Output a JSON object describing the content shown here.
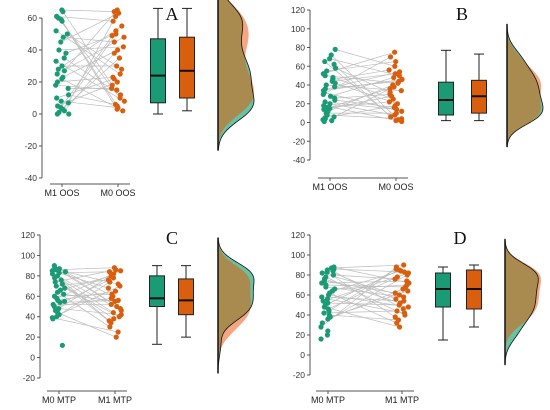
{
  "colors": {
    "green": "#1a9b75",
    "orange": "#d95f0e",
    "pair_line": "#bdbdbd",
    "overlap": "#a98a4f",
    "green_fill": "#66c2a5",
    "orange_fill": "#f4a582"
  },
  "chart_data": [
    {
      "type": "scatter",
      "panel_label": "A",
      "categories": [
        "M1 OOS",
        "M0 OOS"
      ],
      "ylim": [
        -40,
        65
      ],
      "yticks": [
        -40,
        -20,
        0,
        20,
        40,
        60
      ],
      "series": [
        {
          "values": [
            65,
            64,
            61,
            60,
            59,
            58,
            52,
            50,
            48,
            45,
            40,
            38,
            35,
            33,
            30,
            28,
            27,
            25,
            23,
            22,
            20,
            18,
            16,
            12,
            10,
            8,
            7,
            5,
            4,
            3,
            2,
            1,
            0,
            0
          ]
        },
        {
          "values": [
            65,
            64,
            63,
            61,
            58,
            55,
            52,
            50,
            49,
            48,
            45,
            42,
            40,
            38,
            35,
            30,
            28,
            25,
            23,
            22,
            20,
            18,
            16,
            15,
            12,
            10,
            8,
            6,
            5,
            4,
            3,
            2
          ]
        }
      ],
      "box": [
        {
          "min": 0,
          "q1": 7,
          "median": 24,
          "q3": 47,
          "max": 66
        },
        {
          "min": 2,
          "q1": 10,
          "median": 27,
          "q3": 48,
          "max": 66
        }
      ]
    },
    {
      "type": "scatter",
      "panel_label": "B",
      "categories": [
        "M1 OOS",
        "M0 OOS"
      ],
      "ylim": [
        -40,
        120
      ],
      "yticks": [
        -40,
        -20,
        0,
        20,
        40,
        60,
        80,
        100,
        120
      ],
      "series": [
        {
          "values": [
            78,
            72,
            68,
            65,
            62,
            58,
            55,
            52,
            50,
            48,
            46,
            44,
            42,
            40,
            38,
            36,
            34,
            32,
            30,
            28,
            26,
            24,
            22,
            20,
            18,
            16,
            15,
            14,
            12,
            10,
            8,
            6,
            5,
            4,
            3,
            2,
            1
          ]
        },
        {
          "values": [
            75,
            70,
            65,
            60,
            56,
            54,
            52,
            50,
            48,
            46,
            44,
            42,
            40,
            38,
            36,
            34,
            32,
            30,
            28,
            25,
            22,
            20,
            18,
            16,
            14,
            12,
            10,
            8,
            6,
            4,
            3,
            2,
            1
          ]
        }
      ],
      "box": [
        {
          "min": 2,
          "q1": 8,
          "median": 24,
          "q3": 43,
          "max": 77
        },
        {
          "min": 2,
          "q1": 10,
          "median": 28,
          "q3": 45,
          "max": 73
        }
      ]
    },
    {
      "type": "scatter",
      "panel_label": "C",
      "categories": [
        "M0 MTP",
        "M1 MTP"
      ],
      "ylim": [
        -20,
        120
      ],
      "yticks": [
        -20,
        0,
        20,
        40,
        60,
        80,
        100,
        120
      ],
      "series": [
        {
          "values": [
            90,
            88,
            87,
            86,
            85,
            84,
            83,
            82,
            80,
            78,
            76,
            74,
            72,
            70,
            68,
            66,
            64,
            62,
            60,
            58,
            56,
            55,
            54,
            52,
            50,
            48,
            46,
            44,
            42,
            40,
            39,
            38,
            12
          ]
        },
        {
          "values": [
            88,
            86,
            85,
            84,
            82,
            80,
            78,
            76,
            74,
            72,
            70,
            68,
            65,
            62,
            60,
            58,
            56,
            55,
            52,
            50,
            48,
            46,
            44,
            42,
            40,
            38,
            36,
            34,
            30,
            25,
            20
          ]
        }
      ],
      "box": [
        {
          "min": 13,
          "q1": 50,
          "median": 58,
          "q3": 80,
          "max": 90
        },
        {
          "min": 20,
          "q1": 42,
          "median": 56,
          "q3": 77,
          "max": 90
        }
      ]
    },
    {
      "type": "scatter",
      "panel_label": "D",
      "categories": [
        "M0 MTP",
        "M1 MTP"
      ],
      "ylim": [
        -20,
        120
      ],
      "yticks": [
        -20,
        0,
        20,
        40,
        60,
        80,
        100,
        120
      ],
      "series": [
        {
          "values": [
            88,
            87,
            86,
            85,
            84,
            83,
            82,
            80,
            78,
            76,
            74,
            72,
            70,
            68,
            66,
            64,
            62,
            60,
            58,
            56,
            54,
            52,
            50,
            48,
            46,
            44,
            42,
            40,
            38,
            36,
            32,
            28,
            24,
            20,
            16
          ]
        },
        {
          "values": [
            90,
            88,
            86,
            85,
            84,
            83,
            82,
            80,
            78,
            76,
            74,
            72,
            70,
            68,
            66,
            64,
            62,
            60,
            58,
            56,
            54,
            52,
            50,
            48,
            46,
            44,
            42,
            40,
            38,
            35,
            32,
            28
          ]
        }
      ],
      "box": [
        {
          "min": 15,
          "q1": 48,
          "median": 66,
          "q3": 82,
          "max": 88
        },
        {
          "min": 28,
          "q1": 46,
          "median": 66,
          "q3": 85,
          "max": 90
        }
      ]
    }
  ]
}
